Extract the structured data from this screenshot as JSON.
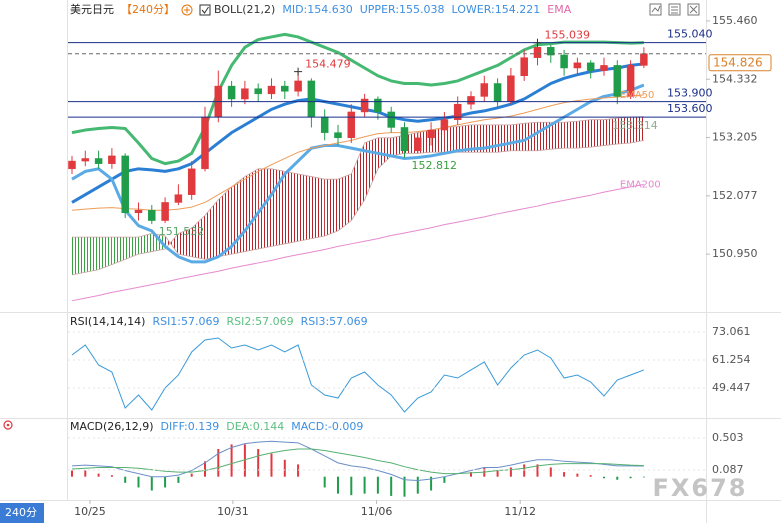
{
  "chart_data": [
    {
      "type": "candlestick",
      "title": "美元日元",
      "period": "【240分】",
      "indicators": [
        {
          "text": "BOLL(21,2)",
          "color": "#333333"
        },
        {
          "text": "MID:154.630",
          "color": "#3d8fe0"
        },
        {
          "text": "UPPER:155.038",
          "color": "#3d8fe0"
        },
        {
          "text": "LOWER:154.221",
          "color": "#3d8fe0"
        },
        {
          "text": "EMA",
          "color": "#e06aa8"
        }
      ],
      "x": [
        0,
        1,
        2,
        3,
        4,
        5,
        6,
        7,
        8,
        9,
        10,
        11,
        12,
        13,
        14,
        15,
        16,
        17,
        18,
        19,
        20,
        21,
        22,
        23,
        24,
        25,
        26,
        27,
        28,
        29,
        30,
        31,
        32,
        33,
        34,
        35,
        36,
        37,
        38,
        39,
        40,
        41,
        42,
        43
      ],
      "open": [
        152.6,
        152.75,
        152.8,
        152.7,
        152.85,
        151.75,
        151.8,
        151.6,
        151.95,
        152.1,
        152.6,
        153.6,
        154.2,
        153.95,
        154.15,
        154.05,
        154.2,
        154.1,
        154.3,
        153.6,
        153.3,
        153.2,
        153.7,
        153.95,
        153.7,
        153.4,
        152.95,
        153.2,
        153.35,
        153.55,
        153.85,
        154.0,
        154.25,
        153.9,
        154.4,
        154.75,
        154.95,
        154.8,
        154.55,
        154.65,
        154.5,
        154.6,
        154.0,
        154.6
      ],
      "high": [
        152.85,
        152.95,
        152.95,
        153.0,
        152.9,
        151.95,
        151.9,
        152.05,
        152.3,
        152.75,
        153.8,
        154.5,
        154.3,
        154.3,
        154.25,
        154.35,
        154.3,
        154.479,
        154.35,
        153.75,
        153.45,
        153.85,
        154.05,
        154.0,
        153.8,
        153.5,
        153.3,
        153.5,
        153.7,
        154.0,
        154.1,
        154.4,
        154.35,
        154.55,
        154.9,
        155.039,
        155.0,
        154.9,
        154.75,
        154.7,
        154.75,
        154.7,
        154.7,
        154.95
      ],
      "low": [
        152.5,
        152.65,
        152.6,
        152.6,
        151.65,
        151.6,
        151.532,
        151.55,
        151.9,
        152.0,
        152.55,
        153.5,
        153.8,
        153.85,
        153.9,
        153.95,
        153.95,
        154.0,
        153.4,
        153.15,
        153.05,
        153.1,
        153.6,
        153.55,
        153.3,
        152.812,
        152.9,
        153.05,
        153.25,
        153.45,
        153.75,
        153.9,
        153.8,
        153.85,
        154.3,
        154.6,
        154.65,
        154.4,
        154.4,
        154.35,
        154.4,
        153.85,
        153.95,
        154.55
      ],
      "close": [
        152.75,
        152.8,
        152.7,
        152.85,
        151.75,
        151.8,
        151.6,
        151.95,
        152.1,
        152.6,
        153.6,
        154.2,
        153.95,
        154.15,
        154.05,
        154.2,
        154.1,
        154.3,
        153.6,
        153.3,
        153.2,
        153.7,
        153.95,
        153.7,
        153.4,
        152.95,
        153.2,
        153.35,
        153.55,
        153.85,
        154.0,
        154.25,
        153.9,
        154.4,
        154.75,
        154.95,
        154.8,
        154.55,
        154.65,
        154.5,
        154.6,
        154.0,
        154.6,
        154.826
      ],
      "up_color": "#e0393e",
      "down_color": "#1f9d4a",
      "lines": [
        {
          "values": [
            153.3,
            153.35,
            153.38,
            153.4,
            153.38,
            153.1,
            152.8,
            152.7,
            152.75,
            152.9,
            153.4,
            154.1,
            154.6,
            154.95,
            155.1,
            155.15,
            155.2,
            155.15,
            155.05,
            154.95,
            154.85,
            154.7,
            154.55,
            154.4,
            154.3,
            154.25,
            154.25,
            154.22,
            154.25,
            154.3,
            154.4,
            154.5,
            154.6,
            154.75,
            154.9,
            155.0,
            155.02,
            155.05,
            155.05,
            155.05,
            155.05,
            155.04,
            155.03,
            155.04
          ],
          "color": "#45b872",
          "width": 3
        },
        {
          "values": [
            151.95,
            152.1,
            152.25,
            152.4,
            152.55,
            152.6,
            152.58,
            152.55,
            152.6,
            152.7,
            152.9,
            153.1,
            153.3,
            153.45,
            153.6,
            153.75,
            153.85,
            153.92,
            153.95,
            153.9,
            153.85,
            153.8,
            153.75,
            153.7,
            153.6,
            153.55,
            153.52,
            153.55,
            153.58,
            153.62,
            153.68,
            153.72,
            153.78,
            153.85,
            153.95,
            154.1,
            154.25,
            154.35,
            154.42,
            154.48,
            154.52,
            154.55,
            154.6,
            154.63
          ],
          "color": "#2a7fd4",
          "width": 3
        },
        {
          "values": [
            152.4,
            152.55,
            152.6,
            152.4,
            151.8,
            151.5,
            151.4,
            151.1,
            150.9,
            150.8,
            150.8,
            150.9,
            151.1,
            151.4,
            151.75,
            152.1,
            152.5,
            152.75,
            153.0,
            153.05,
            153.05,
            153.0,
            152.95,
            152.9,
            152.85,
            152.8,
            152.82,
            152.85,
            152.9,
            152.95,
            152.98,
            153.0,
            153.05,
            153.1,
            153.15,
            153.3,
            153.45,
            153.6,
            153.75,
            153.9,
            154.0,
            154.05,
            154.12,
            154.22
          ],
          "color": "#5aaae6",
          "width": 3
        },
        {
          "name": "EMA50",
          "values": [
            151.8,
            151.82,
            151.84,
            151.85,
            151.83,
            151.82,
            151.8,
            151.8,
            151.82,
            151.86,
            151.95,
            152.1,
            152.25,
            152.4,
            152.55,
            152.68,
            152.8,
            152.92,
            153.0,
            153.05,
            153.1,
            153.15,
            153.22,
            153.28,
            153.3,
            153.3,
            153.32,
            153.35,
            153.4,
            153.45,
            153.5,
            153.55,
            153.58,
            153.62,
            153.68,
            153.75,
            153.82,
            153.88,
            153.92,
            153.95,
            153.97,
            153.99,
            154.01,
            154.03
          ],
          "color": "#ee9c58",
          "width": 1
        },
        {
          "name": "EMA200",
          "values": [
            150.05,
            150.1,
            150.15,
            150.21,
            150.26,
            150.31,
            150.36,
            150.41,
            150.47,
            150.52,
            150.57,
            150.62,
            150.68,
            150.73,
            150.78,
            150.83,
            150.89,
            150.94,
            150.99,
            151.04,
            151.1,
            151.15,
            151.2,
            151.25,
            151.31,
            151.36,
            151.41,
            151.46,
            151.52,
            151.57,
            151.62,
            151.67,
            151.73,
            151.78,
            151.83,
            151.88,
            151.94,
            151.99,
            152.04,
            152.09,
            152.15,
            152.2,
            152.25,
            152.3
          ],
          "color": "#e58ad0",
          "width": 1
        }
      ],
      "cloud": {
        "span_a": [
          150.55,
          150.6,
          150.65,
          150.75,
          150.85,
          150.95,
          151.0,
          151.05,
          151.35,
          151.45,
          151.7,
          152.0,
          152.25,
          152.45,
          152.6,
          152.6,
          152.55,
          152.5,
          152.45,
          152.4,
          152.4,
          152.5,
          153.1,
          153.2,
          153.2,
          153.25,
          153.3,
          153.35,
          153.4,
          153.42,
          153.45,
          153.45,
          153.45,
          153.45,
          153.48,
          153.5,
          153.5,
          153.5,
          153.52,
          153.55,
          153.55,
          153.58,
          153.6,
          153.61
        ],
        "span_b": [
          151.28,
          151.28,
          151.28,
          151.28,
          151.28,
          151.28,
          151.35,
          151.3,
          150.95,
          150.9,
          150.85,
          150.9,
          150.95,
          151.0,
          151.05,
          151.1,
          151.15,
          151.2,
          151.25,
          151.3,
          151.4,
          151.6,
          152.0,
          152.6,
          152.85,
          152.9,
          152.9,
          152.92,
          152.92,
          152.92,
          152.92,
          152.92,
          152.92,
          152.95,
          152.95,
          152.95,
          152.98,
          153.0,
          153.0,
          153.02,
          153.05,
          153.08,
          153.1,
          153.15
        ],
        "up_color": "#b8232a",
        "down_color": "#3aa040",
        "label": 153.314,
        "label_color": "#8fae8f"
      },
      "price_lines": [
        {
          "value": 155.04,
          "label": "155.040"
        },
        {
          "value": 153.9,
          "label": "153.900"
        },
        {
          "value": 153.6,
          "label": "153.600"
        }
      ],
      "price_line_color": "#1a2f8a",
      "last_price": 154.826,
      "last_price_color": "#d9822b",
      "annotations": [
        {
          "x": 35,
          "value": 155.039,
          "color": "#e0393e"
        },
        {
          "x": 17,
          "value": 154.479,
          "color": "#e0393e"
        },
        {
          "x": 6,
          "value": 151.532,
          "color": "#5aa66a"
        },
        {
          "x": 25,
          "value": 152.812,
          "color": "#3aa040"
        }
      ],
      "xlim": [
        -0.3,
        47.67
      ],
      "xticks": [
        {
          "value": 1.35,
          "label": "10/25"
        },
        {
          "value": 12.1,
          "label": "10/31"
        },
        {
          "value": 22.9,
          "label": "11/06"
        },
        {
          "value": 33.7,
          "label": "11/12"
        }
      ],
      "ylim": [
        149.87,
        155.71
      ],
      "yticks": [
        {
          "value": 155.46,
          "label": "155.460"
        },
        154.332,
        153.205,
        152.077,
        {
          "value": 150.95,
          "label": "150.950"
        }
      ],
      "grid": false
    },
    {
      "type": "line",
      "title": "RSI(14,14,14)",
      "indicators": [
        {
          "text": "RSI1:57.069",
          "color": "#3d8fe0"
        },
        {
          "text": "RSI2:57.069",
          "color": "#5cbf80"
        },
        {
          "text": "RSI3:57.069",
          "color": "#3d8fe0"
        }
      ],
      "series": [
        {
          "values": [
            63.36,
            67.58,
            59.15,
            56.19,
            41.01,
            46.48,
            40.17,
            49.45,
            54.93,
            64.63,
            69.69,
            70.53,
            66.31,
            67.58,
            65.47,
            67.58,
            64.63,
            67.58,
            50.71,
            46.5,
            45.23,
            53.66,
            56.19,
            50.71,
            46.5,
            39.33,
            45.23,
            47.76,
            54.93,
            53.66,
            57.04,
            60.41,
            50.71,
            57.88,
            63.36,
            65.47,
            62.1,
            53.66,
            54.93,
            51.98,
            46.07,
            52.82,
            54.93,
            57.07
          ],
          "color": "#3a9ad9"
        }
      ],
      "ylim": [
        38.06,
        80.23
      ],
      "yticks": [
        73.061,
        61.254,
        49.447
      ],
      "grid": true
    },
    {
      "type": "macd",
      "title": "MACD(26,12,9)",
      "indicators": [
        {
          "text": "DIFF:0.139",
          "color": "#3d8fe0"
        },
        {
          "text": "DEA:0.144",
          "color": "#5cbf80"
        },
        {
          "text": "MACD:-0.009",
          "color": "#3d8fe0"
        }
      ],
      "series": [
        {
          "values": [
            0.14,
            0.15,
            0.14,
            0.13,
            0.08,
            0.04,
            0.0,
            0.0,
            0.02,
            0.08,
            0.18,
            0.3,
            0.38,
            0.43,
            0.45,
            0.46,
            0.45,
            0.44,
            0.36,
            0.27,
            0.18,
            0.14,
            0.12,
            0.08,
            0.03,
            -0.04,
            -0.05,
            -0.03,
            0.0,
            0.04,
            0.08,
            0.12,
            0.12,
            0.15,
            0.19,
            0.22,
            0.22,
            0.2,
            0.19,
            0.18,
            0.16,
            0.14,
            0.14,
            0.139
          ],
          "color": "#6a8fc8"
        },
        {
          "values": [
            0.1,
            0.11,
            0.12,
            0.12,
            0.12,
            0.11,
            0.09,
            0.07,
            0.06,
            0.06,
            0.08,
            0.12,
            0.17,
            0.22,
            0.27,
            0.31,
            0.34,
            0.36,
            0.36,
            0.34,
            0.31,
            0.28,
            0.25,
            0.21,
            0.18,
            0.13,
            0.09,
            0.06,
            0.04,
            0.04,
            0.05,
            0.06,
            0.08,
            0.09,
            0.11,
            0.14,
            0.16,
            0.17,
            0.17,
            0.17,
            0.17,
            0.16,
            0.15,
            0.144
          ],
          "color": "#56b070"
        }
      ],
      "histogram": {
        "values": [
          0.08,
          0.08,
          0.04,
          0.02,
          -0.08,
          -0.14,
          -0.18,
          -0.14,
          -0.08,
          0.04,
          0.2,
          0.36,
          0.42,
          0.42,
          0.36,
          0.3,
          0.22,
          0.16,
          0.0,
          -0.14,
          -0.22,
          -0.24,
          -0.22,
          -0.22,
          -0.25,
          -0.26,
          -0.22,
          -0.18,
          -0.08,
          0.0,
          0.06,
          0.12,
          0.08,
          0.12,
          0.16,
          0.16,
          0.12,
          0.06,
          0.04,
          0.02,
          -0.02,
          -0.04,
          -0.02,
          -0.009
        ],
        "up_color": "#e0393e",
        "down_color": "#1f9d4a"
      },
      "ylim": [
        -0.303,
        0.737
      ],
      "yticks": [
        0.503,
        0.087
      ],
      "grid": true
    }
  ],
  "ui": {
    "period_button": "240分",
    "watermark": "FX678"
  }
}
